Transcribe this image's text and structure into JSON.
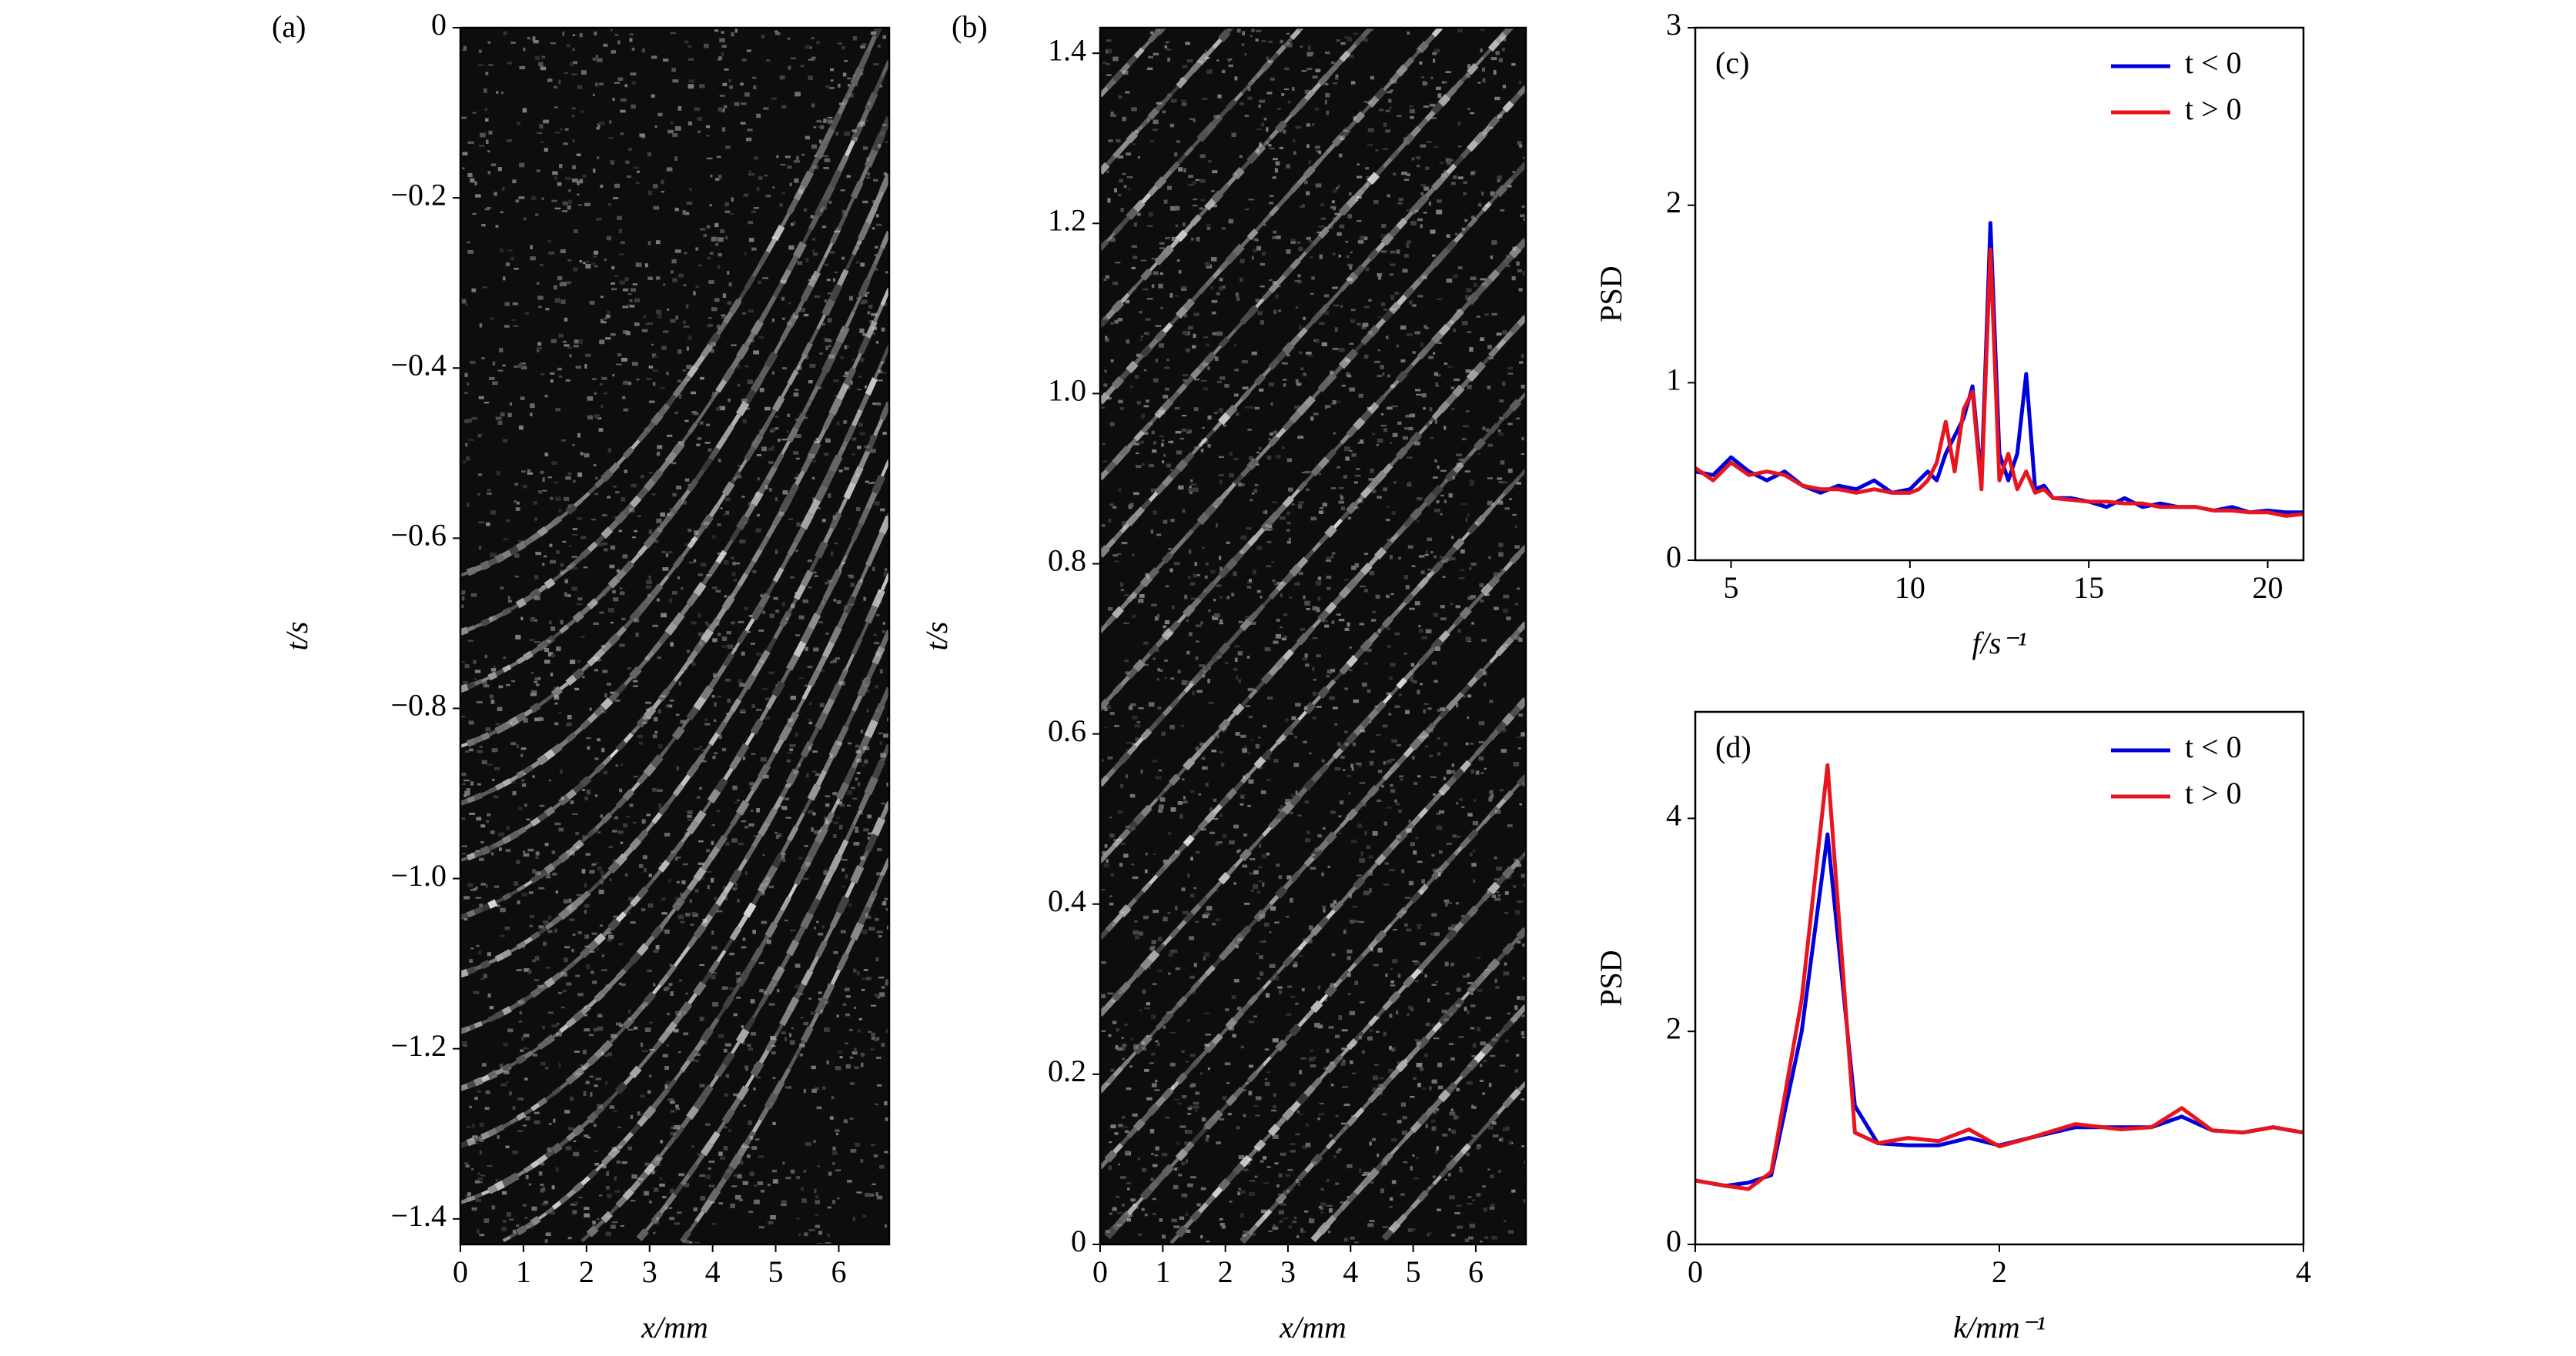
{
  "chart_data": [
    {
      "type": "image",
      "label": "(a)",
      "xlabel": "x/mm",
      "ylabel": "t/s",
      "xlim": [
        0,
        6.8
      ],
      "ylim": [
        -1.43,
        0
      ],
      "xticks": [
        0,
        1,
        2,
        3,
        4,
        5,
        6
      ],
      "yticks": [
        0,
        {
          "value": -0.2,
          "label": "−0.2"
        },
        {
          "value": -0.4,
          "label": "−0.4"
        },
        {
          "value": -0.6,
          "label": "−0.6"
        },
        {
          "value": -0.8,
          "label": "−0.8"
        },
        {
          "value": -1.0,
          "label": "−1.0"
        },
        {
          "value": -1.2,
          "label": "−1.2"
        },
        {
          "value": -1.4,
          "label": "−1.4"
        }
      ]
    },
    {
      "type": "image",
      "label": "(b)",
      "xlabel": "x/mm",
      "ylabel": "t/s",
      "xlim": [
        0,
        6.8
      ],
      "ylim": [
        0,
        1.43
      ],
      "xticks": [
        0,
        1,
        2,
        3,
        4,
        5,
        6
      ],
      "yticks": [
        0,
        0.2,
        0.4,
        0.6,
        0.8,
        {
          "value": 1.0,
          "label": "1.0"
        },
        1.2,
        1.4
      ]
    },
    {
      "type": "line",
      "label": "(c)",
      "xlabel": "f/s⁻¹",
      "ylabel": "PSD",
      "xlim": [
        4,
        21
      ],
      "ylim": [
        0,
        3
      ],
      "xticks": [
        5,
        10,
        15,
        20
      ],
      "yticks": [
        0,
        1,
        2,
        3
      ],
      "legend": "upper right",
      "x": [
        4,
        4.5,
        5,
        5.5,
        6,
        6.5,
        7,
        7.5,
        8,
        8.5,
        9,
        9.5,
        10,
        10.25,
        10.5,
        10.75,
        11,
        11.25,
        11.5,
        11.75,
        12,
        12.25,
        12.5,
        12.75,
        13,
        13.25,
        13.5,
        13.75,
        14,
        14.5,
        15,
        15.5,
        16,
        16.5,
        17,
        17.5,
        18,
        18.5,
        19,
        19.5,
        20,
        20.5,
        21
      ],
      "series": [
        {
          "name": "t < 0",
          "color": "#0000dd",
          "values": [
            0.5,
            0.48,
            0.58,
            0.5,
            0.45,
            0.5,
            0.42,
            0.38,
            0.42,
            0.4,
            0.45,
            0.38,
            0.4,
            0.45,
            0.5,
            0.45,
            0.6,
            0.7,
            0.8,
            0.98,
            0.45,
            1.9,
            0.6,
            0.45,
            0.6,
            1.05,
            0.4,
            0.42,
            0.35,
            0.35,
            0.33,
            0.3,
            0.35,
            0.3,
            0.32,
            0.3,
            0.3,
            0.28,
            0.3,
            0.27,
            0.28,
            0.27,
            0.27
          ]
        },
        {
          "name": "t > 0",
          "color": "#e8141e",
          "values": [
            0.52,
            0.45,
            0.55,
            0.48,
            0.5,
            0.48,
            0.42,
            0.4,
            0.4,
            0.38,
            0.4,
            0.38,
            0.38,
            0.4,
            0.45,
            0.55,
            0.78,
            0.5,
            0.85,
            0.95,
            0.4,
            1.75,
            0.45,
            0.6,
            0.4,
            0.5,
            0.38,
            0.4,
            0.35,
            0.34,
            0.33,
            0.33,
            0.32,
            0.32,
            0.3,
            0.3,
            0.3,
            0.28,
            0.28,
            0.27,
            0.27,
            0.25,
            0.26
          ]
        }
      ]
    },
    {
      "type": "line",
      "label": "(d)",
      "xlabel": "k/mm⁻¹",
      "ylabel": "PSD",
      "xlim": [
        0,
        4
      ],
      "ylim": [
        0,
        5
      ],
      "xticks": [
        0,
        2,
        4
      ],
      "yticks": [
        0,
        2,
        4
      ],
      "legend": "upper right",
      "x": [
        0,
        0.2,
        0.35,
        0.5,
        0.7,
        0.87,
        1.05,
        1.2,
        1.4,
        1.6,
        1.8,
        2.0,
        2.2,
        2.5,
        2.8,
        3.0,
        3.2,
        3.4,
        3.6,
        3.8,
        4.0
      ],
      "series": [
        {
          "name": "t < 0",
          "color": "#0000dd",
          "values": [
            0.6,
            0.55,
            0.58,
            0.65,
            2.0,
            3.85,
            1.3,
            0.95,
            0.93,
            0.93,
            1.0,
            0.93,
            1.0,
            1.1,
            1.1,
            1.1,
            1.2,
            1.07,
            1.05,
            1.1,
            1.05
          ]
        },
        {
          "name": "t > 0",
          "color": "#e8141e",
          "values": [
            0.6,
            0.55,
            0.52,
            0.68,
            2.3,
            4.5,
            1.05,
            0.95,
            1.0,
            0.97,
            1.08,
            0.92,
            1.0,
            1.13,
            1.08,
            1.1,
            1.28,
            1.07,
            1.05,
            1.1,
            1.05
          ]
        }
      ]
    }
  ]
}
